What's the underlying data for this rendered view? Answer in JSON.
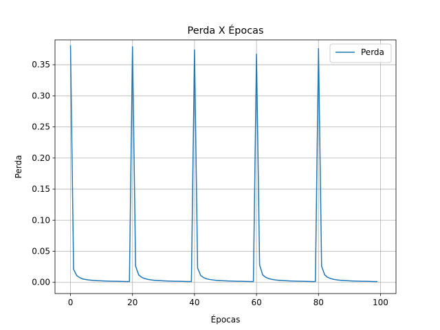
{
  "chart_data": {
    "type": "line",
    "title": "Perda X Épocas",
    "xlabel": "Épocas",
    "ylabel": "Perda",
    "xlim": [
      -5,
      105
    ],
    "ylim": [
      -0.018,
      0.39
    ],
    "xticks": [
      0,
      20,
      40,
      60,
      80,
      100
    ],
    "yticks": [
      0.0,
      0.05,
      0.1,
      0.15,
      0.2,
      0.25,
      0.3,
      0.35
    ],
    "ytick_labels": [
      "0.00",
      "0.05",
      "0.10",
      "0.15",
      "0.20",
      "0.25",
      "0.30",
      "0.35"
    ],
    "xtick_labels": [
      "0",
      "20",
      "40",
      "60",
      "80",
      "100"
    ],
    "grid": true,
    "legend_position": "top-right",
    "series": [
      {
        "name": "Perda",
        "color": "#1f77b4",
        "x": [
          0,
          1,
          2,
          3,
          4,
          5,
          6,
          7,
          8,
          9,
          10,
          11,
          12,
          13,
          14,
          15,
          16,
          17,
          18,
          19,
          20,
          21,
          22,
          23,
          24,
          25,
          26,
          27,
          28,
          29,
          30,
          31,
          32,
          33,
          34,
          35,
          36,
          37,
          38,
          39,
          40,
          41,
          42,
          43,
          44,
          45,
          46,
          47,
          48,
          49,
          50,
          51,
          52,
          53,
          54,
          55,
          56,
          57,
          58,
          59,
          60,
          61,
          62,
          63,
          64,
          65,
          66,
          67,
          68,
          69,
          70,
          71,
          72,
          73,
          74,
          75,
          76,
          77,
          78,
          79,
          80,
          81,
          82,
          83,
          84,
          85,
          86,
          87,
          88,
          89,
          90,
          91,
          92,
          93,
          94,
          95,
          96,
          97,
          98,
          99
        ],
        "values": [
          0.381,
          0.021,
          0.011,
          0.0075,
          0.0055,
          0.0045,
          0.0038,
          0.0033,
          0.0029,
          0.0026,
          0.0024,
          0.0022,
          0.002,
          0.0019,
          0.0018,
          0.0017,
          0.0016,
          0.0015,
          0.0014,
          0.0014,
          0.379,
          0.026,
          0.012,
          0.008,
          0.006,
          0.0048,
          0.004,
          0.0034,
          0.003,
          0.0027,
          0.0024,
          0.0022,
          0.002,
          0.0019,
          0.0018,
          0.0017,
          0.0016,
          0.0015,
          0.0014,
          0.0014,
          0.374,
          0.023,
          0.011,
          0.0075,
          0.0056,
          0.0046,
          0.0039,
          0.0033,
          0.0029,
          0.0026,
          0.0024,
          0.0022,
          0.002,
          0.0019,
          0.0018,
          0.0017,
          0.0016,
          0.0015,
          0.0014,
          0.0014,
          0.367,
          0.028,
          0.012,
          0.008,
          0.006,
          0.0048,
          0.004,
          0.0034,
          0.003,
          0.0027,
          0.0024,
          0.0022,
          0.002,
          0.0019,
          0.0018,
          0.0017,
          0.0016,
          0.0015,
          0.0014,
          0.0014,
          0.376,
          0.026,
          0.012,
          0.008,
          0.006,
          0.0048,
          0.004,
          0.0034,
          0.003,
          0.0027,
          0.0024,
          0.0022,
          0.002,
          0.0019,
          0.0018,
          0.0017,
          0.0016,
          0.0015,
          0.0014,
          0.0014
        ]
      }
    ]
  }
}
